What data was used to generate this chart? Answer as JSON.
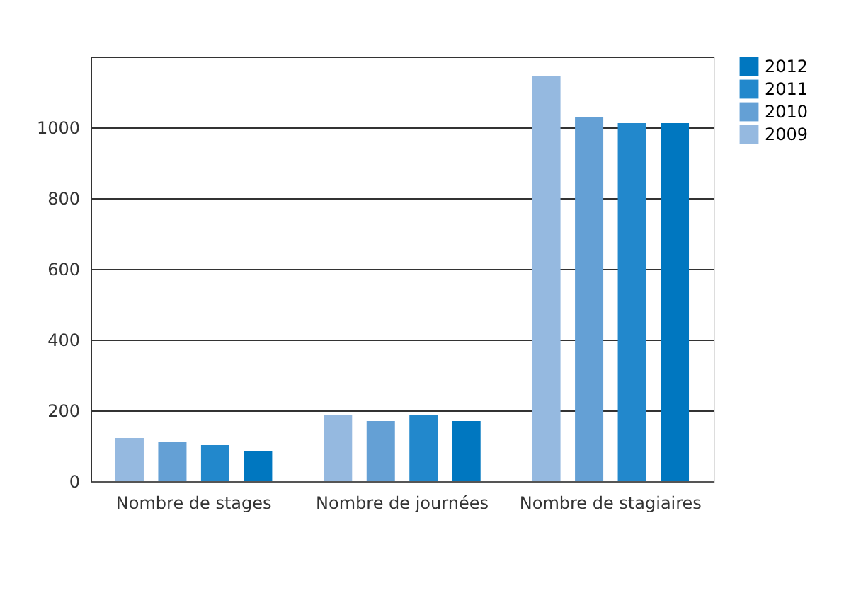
{
  "chart_data": {
    "type": "bar",
    "categories": [
      "Nombre de stages",
      "Nombre de journées",
      "Nombre de stagiaires"
    ],
    "series": [
      {
        "name": "2009",
        "color": "#95b9e0",
        "values": [
          122,
          186,
          1144
        ]
      },
      {
        "name": "2010",
        "color": "#64a0d5",
        "values": [
          110,
          170,
          1028
        ]
      },
      {
        "name": "2011",
        "color": "#2288cc",
        "values": [
          102,
          186,
          1012
        ]
      },
      {
        "name": "2012",
        "color": "#0077c0",
        "values": [
          86,
          170,
          1012
        ]
      }
    ],
    "ylim": [
      0,
      1200
    ],
    "yticks": [
      0,
      200,
      400,
      600,
      800,
      1000,
      {
        "value": 1200,
        "label": null
      }
    ],
    "grid": "y",
    "legend": "top right"
  }
}
